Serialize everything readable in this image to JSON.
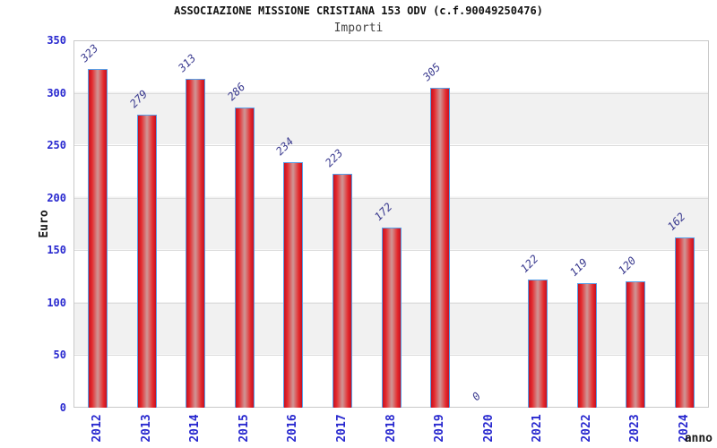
{
  "chart_data": {
    "type": "bar",
    "title": "ASSOCIAZIONE MISSIONE CRISTIANA 153 ODV (c.f.90049250476)",
    "subtitle": "Importi",
    "xlabel": "anno",
    "ylabel": "Euro",
    "categories": [
      "2012",
      "2013",
      "2014",
      "2015",
      "2016",
      "2017",
      "2018",
      "2019",
      "2020",
      "2021",
      "2022",
      "2023",
      "2024"
    ],
    "values": [
      323,
      279,
      313,
      286,
      234,
      223,
      172,
      305,
      0,
      122,
      119,
      120,
      162
    ],
    "ylim": [
      0,
      350
    ],
    "yticks": [
      0,
      50,
      100,
      150,
      200,
      250,
      300,
      350
    ],
    "grid": "horizontal-bands-and-lines",
    "legend": "none",
    "bar_value_labels_rotated_deg": -45,
    "x_tick_labels_rotated_deg": -90
  },
  "style": {
    "tick_label_color": "#2828cf",
    "value_label_color": "#3a3a8f",
    "bar_border_color": "#58a0e8",
    "bar_gradient_edge": "#c51022",
    "bar_gradient_mid": "#e42a2d",
    "bar_gradient_center": "#d09191",
    "band_color": "#f1f1f1",
    "gridline_color": "#dcdcdc",
    "plot_border_color": "#c9c9c9",
    "title_color": "#111111",
    "subtitle_color": "#444444",
    "axis_title_color": "#1a1a1a",
    "background_color": "#ffffff"
  }
}
